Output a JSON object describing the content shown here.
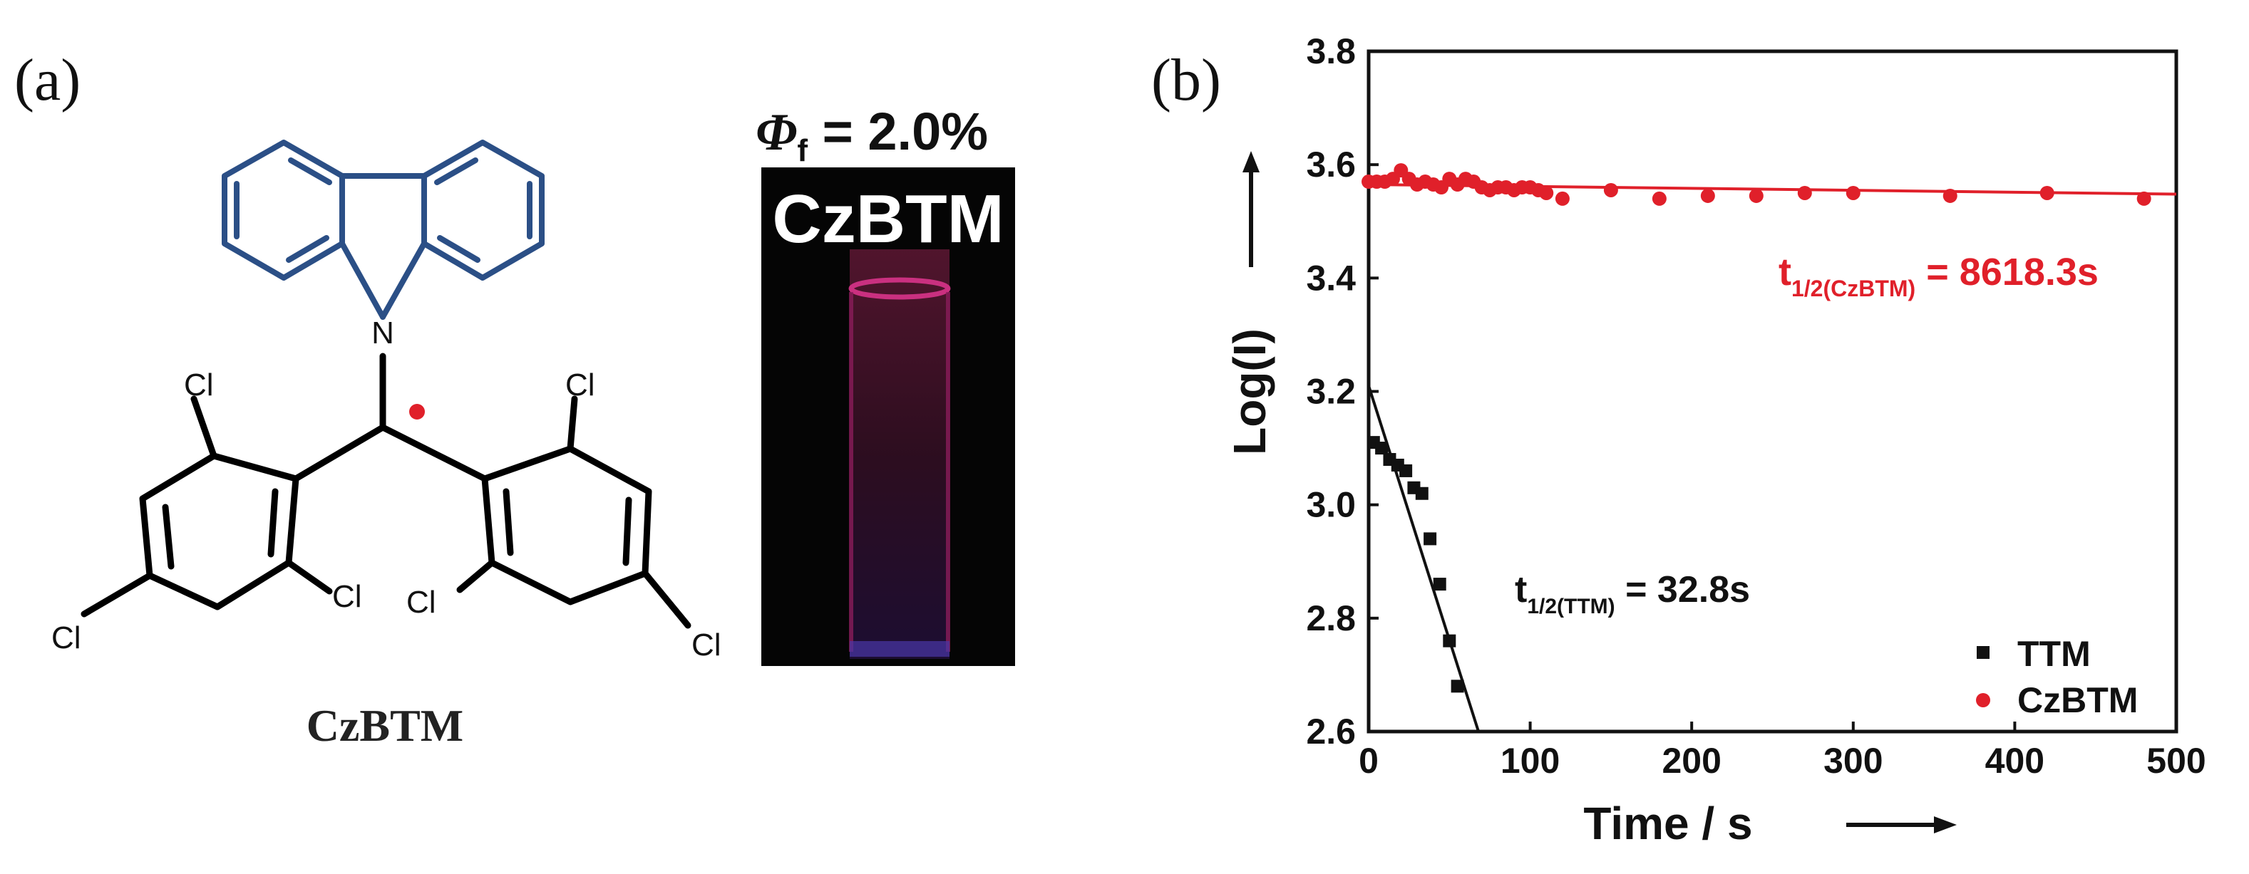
{
  "panel_a": {
    "label": "(a)",
    "molecule": {
      "name": "CzBTM",
      "n_atom": "N",
      "cl_labels": [
        "Cl",
        "Cl",
        "Cl",
        "Cl",
        "Cl",
        "Cl"
      ],
      "radical_color": "#e0202a",
      "carbazole_color": "#2b4f86"
    },
    "photo": {
      "quantum_yield_symbol": "Φ",
      "quantum_yield_subscript": "f",
      "quantum_yield_value": " = 2.0%",
      "label": "CzBTM"
    }
  },
  "panel_b": {
    "label": "(b)"
  },
  "chart_data": {
    "type": "scatter",
    "title": "",
    "xlabel": "Time / s",
    "ylabel": "Log(I)",
    "xlim": [
      0,
      500
    ],
    "ylim": [
      2.6,
      3.8
    ],
    "xticks": [
      0,
      100,
      200,
      300,
      400,
      500
    ],
    "yticks": [
      2.6,
      2.8,
      3.0,
      3.2,
      3.4,
      3.6,
      3.8
    ],
    "xtick_labels": [
      "0",
      "100",
      "200",
      "300",
      "400",
      "500"
    ],
    "ytick_labels": [
      "2.6",
      "2.8",
      "3.0",
      "3.2",
      "3.4",
      "3.6",
      "3.8"
    ],
    "legend_position": "bottom-right",
    "series": [
      {
        "name": "TTM",
        "color": "#111111",
        "marker": "square",
        "x": [
          3,
          8,
          13,
          18,
          23,
          28,
          33,
          38,
          44,
          50,
          55
        ],
        "y": [
          3.11,
          3.1,
          3.08,
          3.07,
          3.06,
          3.03,
          3.02,
          2.94,
          2.86,
          2.76,
          2.68
        ],
        "fit": {
          "x": [
            0,
            68
          ],
          "y": [
            3.21,
            2.6
          ]
        },
        "annotation": {
          "text": "t",
          "sub": "1/2(TTM)",
          "rest": " = 32.8s"
        }
      },
      {
        "name": "CzBTM",
        "color": "#e0202a",
        "marker": "circle",
        "x": [
          0,
          5,
          10,
          15,
          20,
          25,
          30,
          35,
          40,
          45,
          50,
          55,
          60,
          65,
          70,
          75,
          80,
          85,
          90,
          95,
          100,
          105,
          110,
          120,
          150,
          180,
          210,
          240,
          270,
          300,
          360,
          420,
          480
        ],
        "y": [
          3.57,
          3.57,
          3.57,
          3.575,
          3.59,
          3.575,
          3.565,
          3.57,
          3.565,
          3.56,
          3.575,
          3.565,
          3.575,
          3.57,
          3.56,
          3.555,
          3.56,
          3.56,
          3.555,
          3.56,
          3.56,
          3.555,
          3.55,
          3.54,
          3.555,
          3.54,
          3.545,
          3.545,
          3.55,
          3.55,
          3.545,
          3.55,
          3.54
        ],
        "fit": {
          "x": [
            0,
            500
          ],
          "y": [
            3.565,
            3.548
          ]
        },
        "annotation": {
          "text": "t",
          "sub": "1/2(CzBTM)",
          "rest": " = 8618.3s"
        }
      }
    ]
  }
}
